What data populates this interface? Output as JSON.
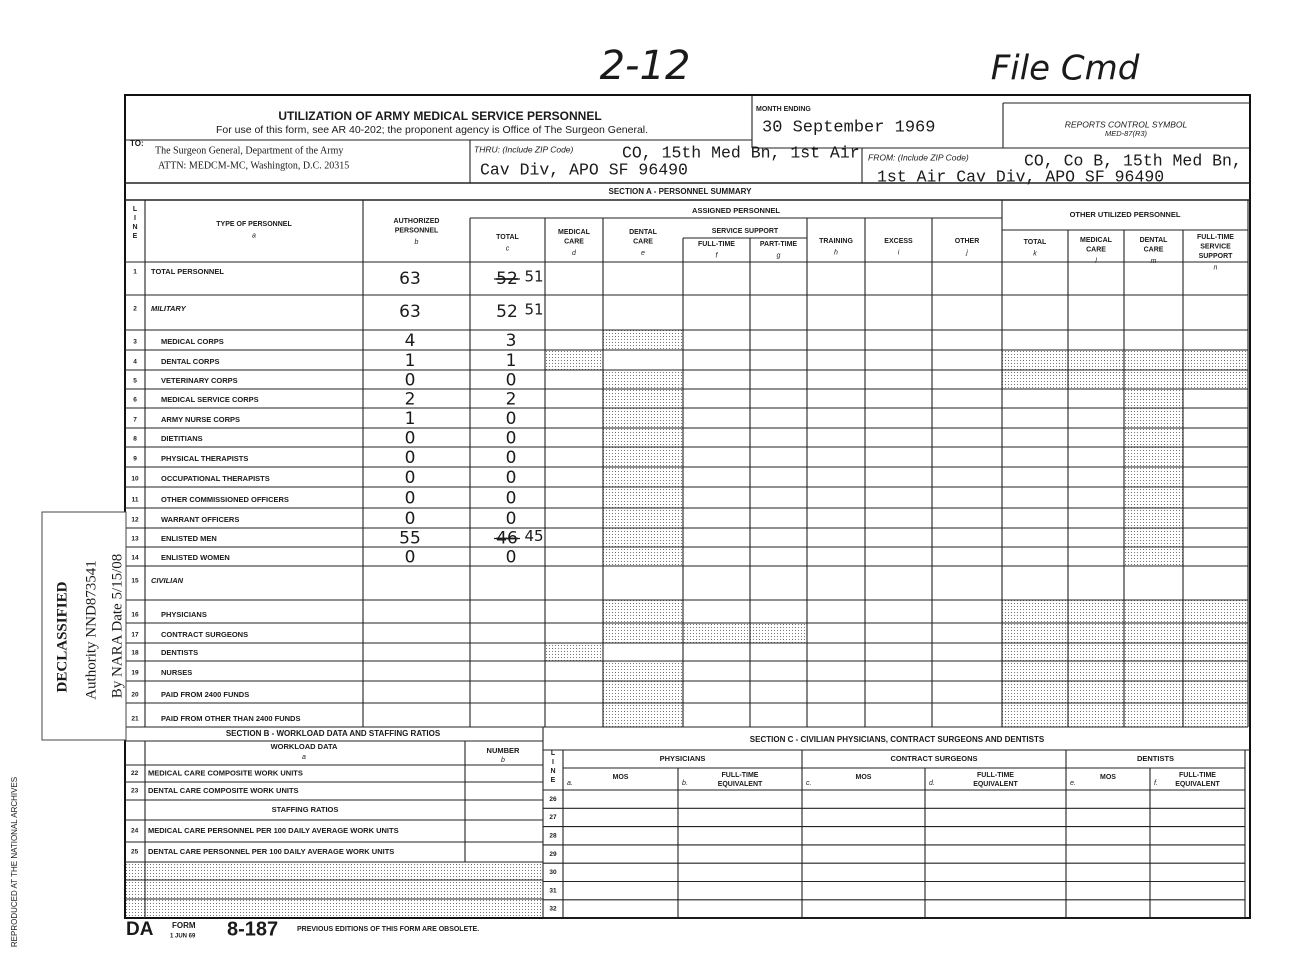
{
  "annotations": {
    "top_center": "2-12",
    "top_right": "File Cmd"
  },
  "header": {
    "title": "UTILIZATION OF ARMY MEDICAL SERVICE PERSONNEL",
    "subtitle": "For use of this form, see AR 40-202; the proponent agency is Office of The Surgeon General.",
    "month_label": "MONTH ENDING",
    "month_value": "30 September 1969",
    "rcs_label": "REPORTS CONTROL SYMBOL",
    "rcs_value": "MED-87(R3)"
  },
  "address": {
    "to_label": "TO:",
    "to_lines": [
      "The Surgeon General, Department of the Army",
      "ATTN: MEDCM-MC, Washington, D.C. 20315"
    ],
    "thru_label": "THRU: (Include ZIP Code)",
    "thru_lines": [
      "CO, 15th Med Bn, 1st Air",
      "Cav Div, APO SF 96490"
    ],
    "from_label": "FROM: (Include ZIP Code)",
    "from_lines": [
      "CO, Co B, 15th Med Bn,",
      "1st Air Cav Div, APO SF 96490"
    ]
  },
  "section_a": {
    "title": "SECTION A - PERSONNEL SUMMARY",
    "line_header": [
      "L",
      "I",
      "N",
      "E"
    ],
    "assigned_header": "ASSIGNED PERSONNEL",
    "service_support_header": "SERVICE SUPPORT",
    "other_header": "OTHER UTILIZED PERSONNEL",
    "columns": [
      {
        "label": [
          "TYPE OF PERSONNEL"
        ],
        "letter": "a"
      },
      {
        "label": [
          "AUTHORIZED",
          "PERSONNEL"
        ],
        "letter": "b"
      },
      {
        "label": [
          "TOTAL"
        ],
        "letter": "c"
      },
      {
        "label": [
          "MEDICAL",
          "CARE"
        ],
        "letter": "d"
      },
      {
        "label": [
          "DENTAL",
          "CARE"
        ],
        "letter": "e"
      },
      {
        "label": [
          "FULL-TIME"
        ],
        "letter": "f"
      },
      {
        "label": [
          "PART-TIME"
        ],
        "letter": "g"
      },
      {
        "label": [
          "TRAINING"
        ],
        "letter": "h"
      },
      {
        "label": [
          "EXCESS"
        ],
        "letter": "i"
      },
      {
        "label": [
          "OTHER"
        ],
        "letter": "j"
      },
      {
        "label": [
          "TOTAL"
        ],
        "letter": "k"
      },
      {
        "label": [
          "MEDICAL",
          "CARE"
        ],
        "letter": "l"
      },
      {
        "label": [
          "DENTAL",
          "CARE"
        ],
        "letter": "m"
      },
      {
        "label": [
          "FULL-TIME",
          "SERVICE",
          "SUPPORT"
        ],
        "letter": "n"
      }
    ],
    "rows": [
      {
        "line": "1",
        "type": "TOTAL PERSONNEL",
        "authorized": "63",
        "total": "52",
        "struck": true,
        "correction": "51"
      },
      {
        "line": "2",
        "type": "MILITARY",
        "authorized": "63",
        "total": "52",
        "correction": "51"
      },
      {
        "line": "3",
        "type": "MEDICAL CORPS",
        "authorized": "4",
        "total": "3"
      },
      {
        "line": "4",
        "type": "DENTAL CORPS",
        "authorized": "1",
        "total": "1"
      },
      {
        "line": "5",
        "type": "VETERINARY CORPS",
        "authorized": "0",
        "total": "0"
      },
      {
        "line": "6",
        "type": "MEDICAL SERVICE CORPS",
        "authorized": "2",
        "total": "2"
      },
      {
        "line": "7",
        "type": "ARMY NURSE CORPS",
        "authorized": "1",
        "total": "0"
      },
      {
        "line": "8",
        "type": "DIETITIANS",
        "authorized": "0",
        "total": "0"
      },
      {
        "line": "9",
        "type": "PHYSICAL THERAPISTS",
        "authorized": "0",
        "total": "0"
      },
      {
        "line": "10",
        "type": "OCCUPATIONAL THERAPISTS",
        "authorized": "0",
        "total": "0"
      },
      {
        "line": "11",
        "type": "OTHER COMMISSIONED OFFICERS",
        "authorized": "0",
        "total": "0"
      },
      {
        "line": "12",
        "type": "WARRANT OFFICERS",
        "authorized": "0",
        "total": "0"
      },
      {
        "line": "13",
        "type": "ENLISTED MEN",
        "authorized": "55",
        "total": "46",
        "struck": true,
        "correction": "45"
      },
      {
        "line": "14",
        "type": "ENLISTED WOMEN",
        "authorized": "0",
        "total": "0"
      },
      {
        "line": "15",
        "type": "CIVILIAN"
      },
      {
        "line": "16",
        "type": "PHYSICIANS"
      },
      {
        "line": "17",
        "type": "CONTRACT SURGEONS"
      },
      {
        "line": "18",
        "type": "DENTISTS"
      },
      {
        "line": "19",
        "type": "NURSES"
      },
      {
        "line": "20",
        "type": "PAID FROM 2400 FUNDS"
      },
      {
        "line": "21",
        "type": "PAID FROM OTHER THAN 2400 FUNDS"
      }
    ]
  },
  "section_b": {
    "title": "SECTION B - WORKLOAD DATA AND STAFFING RATIOS",
    "workload_header": "WORKLOAD DATA",
    "workload_letter": "a",
    "number_header": "NUMBER",
    "number_letter": "b",
    "rows": [
      {
        "line": "22",
        "label": "MEDICAL CARE COMPOSITE WORK UNITS"
      },
      {
        "line": "23",
        "label": "DENTAL CARE COMPOSITE WORK UNITS"
      }
    ],
    "staffing_header": "STAFFING RATIOS",
    "ratio_rows": [
      {
        "line": "24",
        "label": "MEDICAL CARE PERSONNEL PER 100 DAILY AVERAGE WORK UNITS"
      },
      {
        "line": "25",
        "label": "DENTAL CARE PERSONNEL PER 100 DAILY AVERAGE WORK UNITS"
      }
    ]
  },
  "section_c": {
    "title": "SECTION C - CIVILIAN PHYSICIANS, CONTRACT SURGEONS AND DENTISTS",
    "line_header": [
      "L",
      "I",
      "N",
      "E"
    ],
    "groups": [
      "PHYSICIANS",
      "CONTRACT SURGEONS",
      "DENTISTS"
    ],
    "columns": [
      {
        "letter": "a.",
        "label": [
          "MOS"
        ]
      },
      {
        "letter": "b.",
        "label": [
          "FULL-TIME",
          "EQUIVALENT"
        ]
      },
      {
        "letter": "c.",
        "label": [
          "MOS"
        ]
      },
      {
        "letter": "d.",
        "label": [
          "FULL-TIME",
          "EQUIVALENT"
        ]
      },
      {
        "letter": "e.",
        "label": [
          "MOS"
        ]
      },
      {
        "letter": "f.",
        "label": [
          "FULL-TIME",
          "EQUIVALENT"
        ]
      }
    ],
    "lines": [
      "26",
      "27",
      "28",
      "29",
      "30",
      "31",
      "32"
    ]
  },
  "footer": {
    "da": "DA",
    "form": "FORM",
    "date": "1 JUN 69",
    "number": "8-187",
    "note": "PREVIOUS EDITIONS OF THIS FORM ARE OBSOLETE."
  },
  "stamp": {
    "title": "DECLASSIFIED",
    "authority": "Authority NND873541",
    "by": "By NARA Date 5/15/08"
  },
  "side_note": "REPRODUCED AT THE NATIONAL ARCHIVES"
}
